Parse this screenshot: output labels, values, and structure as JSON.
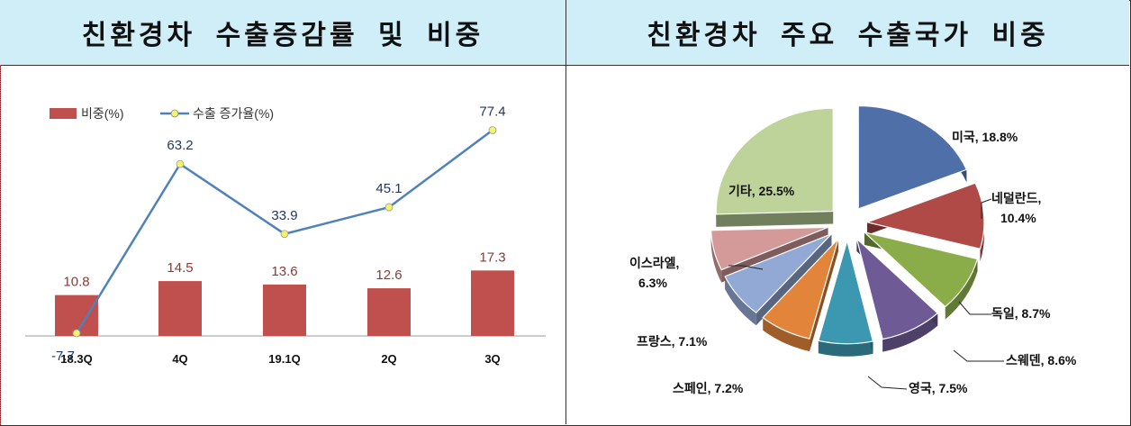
{
  "left": {
    "title": "친환경차 수출증감률 및 비중",
    "legend": {
      "bar": "비중(%)",
      "line": "수출 증가율(%)"
    }
  },
  "right": {
    "title": "친환경차 주요 수출국가 비중"
  },
  "colors": {
    "bar": "#c0504d",
    "line": "#4f81bd",
    "marker": "#f4f46a",
    "bar_label": "#8a3a36",
    "line_label": "#1f3864"
  },
  "chart_data": [
    {
      "type": "bar",
      "categories": [
        "18.3Q",
        "4Q",
        "19.1Q",
        "2Q",
        "3Q"
      ],
      "series": [
        {
          "name": "비중(%)",
          "values": [
            10.8,
            14.5,
            13.6,
            12.6,
            17.3
          ]
        },
        {
          "name": "수출 증가율(%)",
          "type": "line",
          "values": [
            -7.7,
            63.2,
            33.9,
            45.1,
            77.4
          ]
        }
      ],
      "title": "친환경차 수출증감률 및 비중",
      "legend": "top-left",
      "grid": false
    },
    {
      "type": "pie",
      "exploded": true,
      "title": "친환경차 주요 수출국가 비중",
      "slices": [
        {
          "label": "미국",
          "value": 18.8,
          "text": "미국, 18.8%",
          "color": "#4f6fa8"
        },
        {
          "label": "네덜란드",
          "value": 10.4,
          "text": "네덜란드, 10.4%",
          "color": "#b04a47"
        },
        {
          "label": "독일",
          "value": 8.7,
          "text": "독일, 8.7%",
          "color": "#8aad4a"
        },
        {
          "label": "스웨덴",
          "value": 8.6,
          "text": "스웨덴, 8.6%",
          "color": "#6e5b96"
        },
        {
          "label": "영국",
          "value": 7.5,
          "text": "영국, 7.5%",
          "color": "#3c98b0"
        },
        {
          "label": "스페인",
          "value": 7.2,
          "text": "스페인, 7.2%",
          "color": "#e2853a"
        },
        {
          "label": "프랑스",
          "value": 7.1,
          "text": "프랑스, 7.1%",
          "color": "#91a9d4"
        },
        {
          "label": "이스라엘",
          "value": 6.3,
          "text": "이스라엘, 6.3%",
          "color": "#d49a99"
        },
        {
          "label": "기타",
          "value": 25.5,
          "text": "기타, 25.5%",
          "color": "#bed39a"
        }
      ]
    }
  ]
}
